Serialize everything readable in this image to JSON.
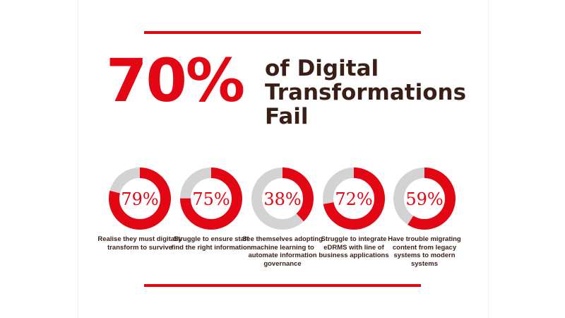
{
  "colors": {
    "accent": "#e30613",
    "track": "#d3d3d3",
    "text_dark": "#3a1f16"
  },
  "headline": {
    "big_percent": "70%",
    "line1": "of Digital",
    "line2": "Transformations",
    "line3": "Fail"
  },
  "chart_data": {
    "type": "pie",
    "subtype": "donut-row",
    "stats": [
      {
        "value": 79,
        "label": "79%",
        "caption": "Realise they must digitally transform to survive"
      },
      {
        "value": 75,
        "label": "75%",
        "caption": "Struggle to ensure staff find the right information"
      },
      {
        "value": 38,
        "label": "38%",
        "caption": "See themselves adopting machine learning to automate information governance"
      },
      {
        "value": 72,
        "label": "72%",
        "caption": "Struggle to integrate eDRMS with line of business applications"
      },
      {
        "value": 59,
        "label": "59%",
        "caption": "Have trouble migrating content from legacy systems to modern systems"
      }
    ]
  }
}
